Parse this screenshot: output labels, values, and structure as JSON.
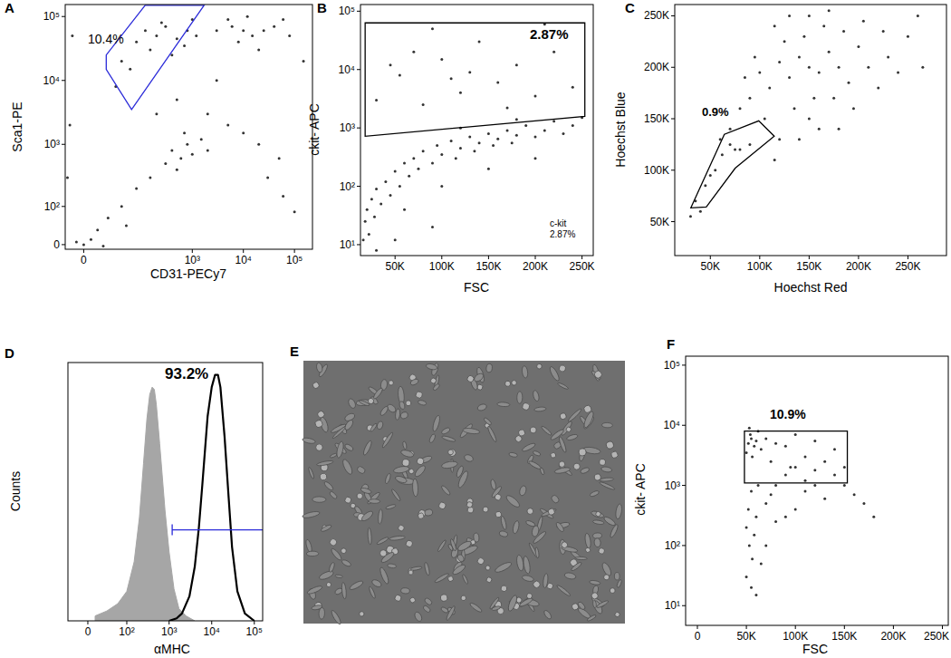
{
  "chart_data": [
    {
      "type": "scatter",
      "title": "A",
      "xlabel": "CD31-PECy7",
      "ylabel": "Sca1-PE",
      "log": true,
      "color": "#000000",
      "xlim": [
        -14,
        225000
      ],
      "ylim": [
        -9,
        154000
      ],
      "xticks": [
        0,
        {
          "value": 1000,
          "label": "10³"
        },
        {
          "value": 10000,
          "label": "10⁴"
        },
        {
          "value": 100000,
          "label": "10⁵"
        }
      ],
      "yticks": [
        0,
        {
          "value": 100,
          "label": "10²"
        },
        {
          "value": 1000,
          "label": "10³"
        },
        {
          "value": 10000,
          "label": "10⁴"
        },
        {
          "value": 100000,
          "label": "10⁵"
        }
      ],
      "x": [
        40,
        80,
        120,
        200,
        300,
        500,
        800,
        1200,
        60,
        150,
        400,
        250,
        700,
        1000,
        30,
        3000,
        6000,
        10000,
        15000,
        25000,
        40000,
        8000,
        20000,
        5000,
        60000,
        12000,
        80000,
        400,
        600,
        800,
        1000,
        500,
        1500,
        700,
        300,
        2000,
        0,
        10,
        20,
        5,
        40,
        80,
        150,
        -5,
        15,
        50,
        200,
        500,
        2000,
        5000,
        10000,
        3000,
        30000,
        60000,
        100000,
        50000,
        20000,
        -10,
        -8,
        150000,
        -12
      ],
      "values": [
        20000,
        40000,
        60000,
        50000,
        70000,
        45000,
        60000,
        50000,
        15000,
        30000,
        25000,
        80000,
        35000,
        90000,
        8000,
        60000,
        70000,
        60000,
        50000,
        60000,
        70000,
        40000,
        30000,
        90000,
        90000,
        100000,
        50000,
        800,
        600,
        1000,
        700,
        400,
        1200,
        1500,
        500,
        800,
        0,
        30,
        60,
        10,
        100,
        200,
        300,
        5,
        -3,
        40,
        3000,
        5000,
        3000,
        2000,
        1500,
        10000,
        300,
        150,
        80,
        600,
        1000,
        2000,
        50000,
        20000,
        300
      ],
      "gate": {
        "label": "10.4%",
        "color": "#2b2bd9",
        "x": [
          18,
          18,
          119,
          1700,
          64
        ],
        "y": [
          14900,
          25000,
          150000,
          150000,
          3500
        ]
      }
    },
    {
      "type": "scatter",
      "title": "B",
      "xlabel": "FSC",
      "ylabel": "ckit- APC",
      "log": "y",
      "color": "#000000",
      "xlim": [
        13000,
        262000
      ],
      "ylim": [
        6.5,
        130000
      ],
      "xticks": [
        {
          "value": 50000,
          "label": "50K"
        },
        {
          "value": 100000,
          "label": "100K"
        },
        {
          "value": 150000,
          "label": "150K"
        },
        {
          "value": 200000,
          "label": "200K"
        },
        {
          "value": 250000,
          "label": "250K"
        }
      ],
      "yticks": [
        {
          "value": 10,
          "label": "10¹"
        },
        {
          "value": 100,
          "label": "10²"
        },
        {
          "value": 1000,
          "label": "10³"
        },
        {
          "value": 10000,
          "label": "10⁴"
        },
        {
          "value": 100000,
          "label": "10⁵"
        }
      ],
      "x": [
        16000,
        18000,
        20000,
        22000,
        25000,
        28000,
        30000,
        35000,
        40000,
        45000,
        50000,
        55000,
        60000,
        65000,
        70000,
        75000,
        80000,
        90000,
        95000,
        100000,
        110000,
        115000,
        120000,
        130000,
        135000,
        140000,
        150000,
        155000,
        160000,
        170000,
        175000,
        180000,
        190000,
        200000,
        210000,
        220000,
        230000,
        240000,
        250000,
        60000,
        100000,
        150000,
        200000,
        120000,
        180000,
        30000,
        55000,
        80000,
        100000,
        120000,
        140000,
        160000,
        180000,
        200000,
        220000,
        240000,
        90000,
        70000,
        130000,
        210000,
        170000,
        110000,
        45000,
        30000,
        50000,
        90000
      ],
      "values": [
        12,
        25,
        40,
        15,
        60,
        30,
        90,
        50,
        120,
        70,
        180,
        100,
        250,
        150,
        300,
        200,
        400,
        250,
        500,
        350,
        600,
        300,
        450,
        700,
        400,
        550,
        800,
        500,
        650,
        900,
        550,
        750,
        1100,
        700,
        900,
        1300,
        800,
        1100,
        1500,
        40,
        100,
        200,
        300,
        1000,
        1400,
        3000,
        8000,
        2500,
        15000,
        4000,
        30000,
        6000,
        12000,
        3500,
        20000,
        5000,
        50000,
        20000,
        9000,
        60000,
        2200,
        7000,
        12000,
        8,
        12,
        20
      ],
      "gate": {
        "label": "2.87%",
        "color": "#000000",
        "x": [
          18000,
          253000,
          253000,
          18000
        ],
        "y": [
          63000,
          63000,
          1580,
          720
        ]
      },
      "annotations": [
        "c-kit",
        "2.87%"
      ]
    },
    {
      "type": "scatter",
      "title": "C",
      "xlabel": "Hoechst Red",
      "ylabel": "Hoechst Blue",
      "color": "#000000",
      "xlim": [
        14000,
        289000
      ],
      "ylim": [
        17000,
        261000
      ],
      "xticks": [
        {
          "value": 50000,
          "label": "50K"
        },
        {
          "value": 100000,
          "label": "100K"
        },
        {
          "value": 150000,
          "label": "150K"
        },
        {
          "value": 200000,
          "label": "200K"
        },
        {
          "value": 250000,
          "label": "250K"
        }
      ],
      "yticks": [
        {
          "value": 50000,
          "label": "50K"
        },
        {
          "value": 100000,
          "label": "100K"
        },
        {
          "value": 150000,
          "label": "150K"
        },
        {
          "value": 200000,
          "label": "200K"
        },
        {
          "value": 250000,
          "label": "250K"
        }
      ],
      "x": [
        150000,
        140000,
        160000,
        130000,
        170000,
        120000,
        180000,
        110000,
        190000,
        145000,
        155000,
        100000,
        200000,
        125000,
        175000,
        135000,
        165000,
        210000,
        90000,
        220000,
        115000,
        185000,
        150000,
        150000,
        230000,
        80000,
        240000,
        105000,
        195000,
        70000,
        250000,
        160000,
        130000,
        205000,
        95000,
        260000,
        140000,
        120000,
        180000,
        85000,
        225000,
        170000,
        75000,
        265000,
        115000,
        35000,
        45000,
        55000,
        62000,
        70000,
        80000,
        50000,
        40000,
        30000,
        60000,
        90000
      ],
      "values": [
        200000,
        210000,
        195000,
        190000,
        215000,
        205000,
        200000,
        180000,
        185000,
        230000,
        170000,
        195000,
        220000,
        225000,
        170000,
        160000,
        240000,
        200000,
        170000,
        180000,
        240000,
        235000,
        250000,
        150000,
        210000,
        160000,
        195000,
        150000,
        160000,
        140000,
        230000,
        140000,
        250000,
        245000,
        210000,
        250000,
        130000,
        130000,
        140000,
        190000,
        235000,
        255000,
        120000,
        200000,
        110000,
        70000,
        85000,
        100000,
        115000,
        125000,
        120000,
        95000,
        60000,
        55000,
        130000,
        125000
      ],
      "gate": {
        "label": "0.9%",
        "color": "#000000",
        "x": [
          30300,
          64200,
          99000,
          114700,
          75200,
          45900
        ],
        "y": [
          63400,
          134800,
          148000,
          133000,
          102000,
          64300
        ]
      }
    },
    {
      "type": "line",
      "title": "D",
      "xlabel": "αMHC",
      "ylabel": "Counts",
      "log": "x",
      "tick_labels": "x",
      "xlim": [
        -32,
        157000
      ],
      "ylim": [
        0,
        105
      ],
      "xticks": [
        0,
        {
          "value": 100,
          "label": "10²"
        },
        {
          "value": 1000,
          "label": "10³"
        },
        {
          "value": 10000,
          "label": "10⁴"
        },
        {
          "value": 100000,
          "label": "10⁵"
        }
      ],
      "series": [
        {
          "type": "area",
          "color": "#a6a6a6",
          "x": [
            10,
            30,
            60,
            100,
            150,
            200,
            250,
            300,
            350,
            400,
            450,
            500,
            600,
            800,
            1000,
            1300,
            1700,
            2500,
            4000
          ],
          "values": [
            2,
            4,
            7,
            12,
            24,
            42,
            64,
            82,
            92,
            95,
            94,
            88,
            72,
            45,
            28,
            13,
            5,
            2,
            0
          ]
        },
        {
          "type": "line",
          "color": "#000000",
          "x": [
            1000,
            1500,
            2000,
            3000,
            4000,
            5000,
            6000,
            7000,
            8000,
            10000,
            12000,
            14000,
            16000,
            20000,
            25000,
            30000,
            40000,
            60000,
            100000
          ],
          "values": [
            0,
            1,
            3,
            10,
            22,
            38,
            55,
            70,
            83,
            95,
            100,
            100,
            95,
            75,
            50,
            30,
            12,
            3,
            0
          ]
        }
      ],
      "gate": {
        "label": "93.2%",
        "color": "#2b2bd9",
        "x": [
          1180,
          157000
        ],
        "y": 37
      }
    },
    {
      "type": "image",
      "title": "E"
    },
    {
      "type": "scatter",
      "title": "F",
      "xlabel": "FSC",
      "ylabel": "ckit- APC",
      "log": "y",
      "color": "#000000",
      "xlim": [
        -12000,
        256000
      ],
      "ylim": [
        4.7,
        141000
      ],
      "xticks": [
        0,
        {
          "value": 50000,
          "label": "50K"
        },
        {
          "value": 100000,
          "label": "100K"
        },
        {
          "value": 150000,
          "label": "150K"
        },
        {
          "value": 200000,
          "label": "200K"
        },
        {
          "value": 250000,
          "label": "250K"
        }
      ],
      "yticks": [
        {
          "value": 10,
          "label": "10¹"
        },
        {
          "value": 100,
          "label": "10²"
        },
        {
          "value": 1000,
          "label": "10³"
        },
        {
          "value": 10000,
          "label": "10⁴"
        },
        {
          "value": 100000,
          "label": "10⁵"
        }
      ],
      "x": [
        52000,
        55000,
        58000,
        54000,
        60000,
        50000,
        56000,
        62000,
        53000,
        65000,
        70000,
        80000,
        90000,
        100000,
        120000,
        140000,
        110000,
        75000,
        95000,
        50000,
        52000,
        55000,
        58000,
        60000,
        53000,
        56000,
        50000,
        55000,
        62000,
        70000,
        80000,
        90000,
        100000,
        110000,
        120000,
        130000,
        140000,
        150000,
        160000,
        170000,
        180000,
        130000,
        100000,
        80000,
        70000,
        65000,
        60000,
        75000,
        110000,
        150000,
        120000,
        90000
      ],
      "values": [
        5000,
        6000,
        4500,
        7000,
        5500,
        3500,
        3000,
        8000,
        9000,
        4000,
        6000,
        5000,
        4500,
        7000,
        5500,
        4000,
        3000,
        2500,
        2000,
        200,
        400,
        800,
        150,
        300,
        100,
        60,
        30,
        20,
        1000,
        500,
        1000,
        1500,
        2000,
        1200,
        1800,
        2500,
        1500,
        1000,
        700,
        500,
        300,
        600,
        400,
        250,
        100,
        50,
        15,
        700,
        800,
        2000,
        1000,
        300
      ],
      "gate": {
        "label": "10.9%",
        "color": "#000000",
        "x": [
          48000,
          153000,
          153000,
          48000
        ],
        "y": [
          8000,
          8000,
          1100,
          1100
        ]
      }
    }
  ]
}
